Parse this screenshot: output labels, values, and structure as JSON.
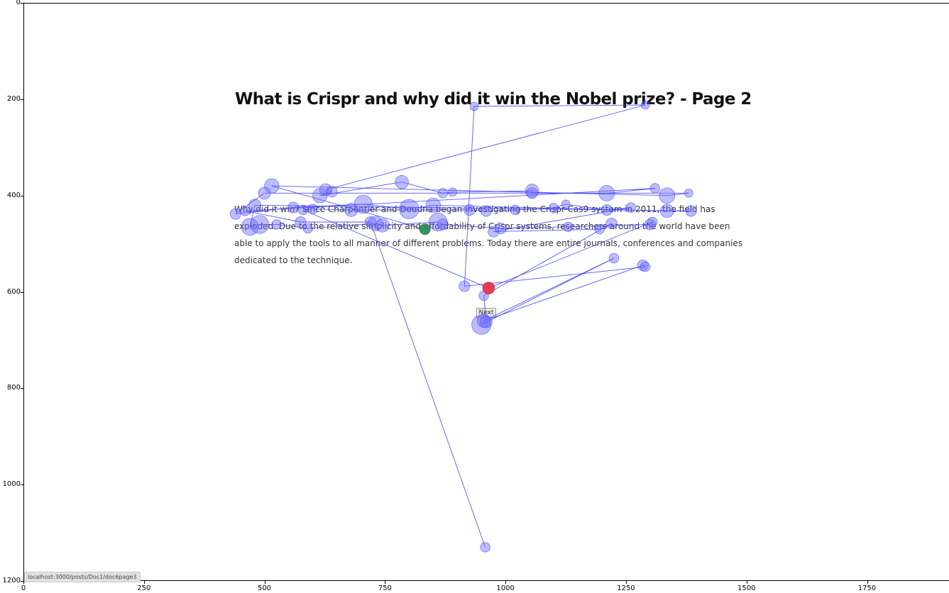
{
  "page": {
    "heading": "What is Crispr and why did it win the Nobel prize? - Page 2",
    "paragraph": "Why did it win? Since Charpentier and Doudna began investigating the Crispr-Cas9 system in 2011, the field has exploded. Due to the relative simplicity and affordability of Crispr systems, researchers around the world have been able to apply the tools to all manner of different problems. Today there are entire journals, conferences and companies dedicated to the technique.",
    "next_label": "Next",
    "status_url": "localhost:3000/posts/Doc1/doc6page3"
  },
  "colors": {
    "scanpath": "#3a3aff",
    "fixation_fill": "#6a6aff",
    "start_fixation": "#2e8b57",
    "end_fixation": "#e8334a"
  },
  "chart_data": {
    "type": "scatter",
    "title": "",
    "xlabel": "",
    "ylabel": "",
    "xlim": [
      0,
      1920
    ],
    "ylim": [
      1200,
      0
    ],
    "x_ticks": [
      "0",
      "250",
      "500",
      "750",
      "1000",
      "1250",
      "1500",
      "1750"
    ],
    "y_ticks": [
      "0",
      "200",
      "400",
      "600",
      "800",
      "1000",
      "1200"
    ],
    "grid": false,
    "legend": "none",
    "series": [
      {
        "points": [
          {
            "x": 833,
            "y": 470,
            "r": 9
          },
          {
            "x": 958,
            "y": 1130,
            "r": 8
          },
          {
            "x": 935,
            "y": 215,
            "r": 7
          },
          {
            "x": 1290,
            "y": 212,
            "r": 7
          },
          {
            "x": 515,
            "y": 380,
            "r": 12
          },
          {
            "x": 500,
            "y": 395,
            "r": 10
          },
          {
            "x": 627,
            "y": 388,
            "r": 10
          },
          {
            "x": 640,
            "y": 392,
            "r": 9
          },
          {
            "x": 615,
            "y": 400,
            "r": 12
          },
          {
            "x": 785,
            "y": 372,
            "r": 11
          },
          {
            "x": 870,
            "y": 395,
            "r": 8
          },
          {
            "x": 890,
            "y": 393,
            "r": 7
          },
          {
            "x": 1055,
            "y": 390,
            "r": 11
          },
          {
            "x": 1055,
            "y": 395,
            "r": 9
          },
          {
            "x": 1210,
            "y": 395,
            "r": 13
          },
          {
            "x": 1310,
            "y": 385,
            "r": 8
          },
          {
            "x": 1335,
            "y": 400,
            "r": 13
          },
          {
            "x": 1380,
            "y": 395,
            "r": 7
          },
          {
            "x": 440,
            "y": 438,
            "r": 9
          },
          {
            "x": 460,
            "y": 432,
            "r": 8
          },
          {
            "x": 480,
            "y": 420,
            "r": 10
          },
          {
            "x": 560,
            "y": 425,
            "r": 9
          },
          {
            "x": 580,
            "y": 430,
            "r": 8
          },
          {
            "x": 600,
            "y": 428,
            "r": 8
          },
          {
            "x": 680,
            "y": 430,
            "r": 11
          },
          {
            "x": 705,
            "y": 418,
            "r": 15
          },
          {
            "x": 800,
            "y": 428,
            "r": 16
          },
          {
            "x": 850,
            "y": 420,
            "r": 12
          },
          {
            "x": 925,
            "y": 430,
            "r": 9
          },
          {
            "x": 960,
            "y": 432,
            "r": 9
          },
          {
            "x": 1020,
            "y": 430,
            "r": 8
          },
          {
            "x": 1100,
            "y": 426,
            "r": 8
          },
          {
            "x": 1125,
            "y": 418,
            "r": 7
          },
          {
            "x": 1210,
            "y": 430,
            "r": 9
          },
          {
            "x": 1260,
            "y": 425,
            "r": 8
          },
          {
            "x": 1335,
            "y": 432,
            "r": 11
          },
          {
            "x": 1385,
            "y": 432,
            "r": 9
          },
          {
            "x": 470,
            "y": 465,
            "r": 14
          },
          {
            "x": 490,
            "y": 460,
            "r": 15
          },
          {
            "x": 525,
            "y": 460,
            "r": 8
          },
          {
            "x": 575,
            "y": 455,
            "r": 9
          },
          {
            "x": 590,
            "y": 468,
            "r": 8
          },
          {
            "x": 720,
            "y": 455,
            "r": 9
          },
          {
            "x": 730,
            "y": 458,
            "r": 12
          },
          {
            "x": 745,
            "y": 462,
            "r": 11
          },
          {
            "x": 860,
            "y": 455,
            "r": 15
          },
          {
            "x": 870,
            "y": 460,
            "r": 9
          },
          {
            "x": 975,
            "y": 475,
            "r": 9
          },
          {
            "x": 990,
            "y": 468,
            "r": 9
          },
          {
            "x": 1130,
            "y": 465,
            "r": 8
          },
          {
            "x": 1195,
            "y": 470,
            "r": 8
          },
          {
            "x": 1220,
            "y": 458,
            "r": 9
          },
          {
            "x": 1300,
            "y": 460,
            "r": 9
          },
          {
            "x": 1305,
            "y": 455,
            "r": 8
          },
          {
            "x": 915,
            "y": 588,
            "r": 9
          },
          {
            "x": 955,
            "y": 608,
            "r": 8
          },
          {
            "x": 1225,
            "y": 530,
            "r": 8
          },
          {
            "x": 1285,
            "y": 545,
            "r": 9
          },
          {
            "x": 1290,
            "y": 548,
            "r": 8
          },
          {
            "x": 950,
            "y": 668,
            "r": 16
          },
          {
            "x": 955,
            "y": 660,
            "r": 11
          },
          {
            "x": 960,
            "y": 662,
            "r": 10
          },
          {
            "x": 965,
            "y": 592,
            "r": 10
          }
        ]
      }
    ]
  }
}
